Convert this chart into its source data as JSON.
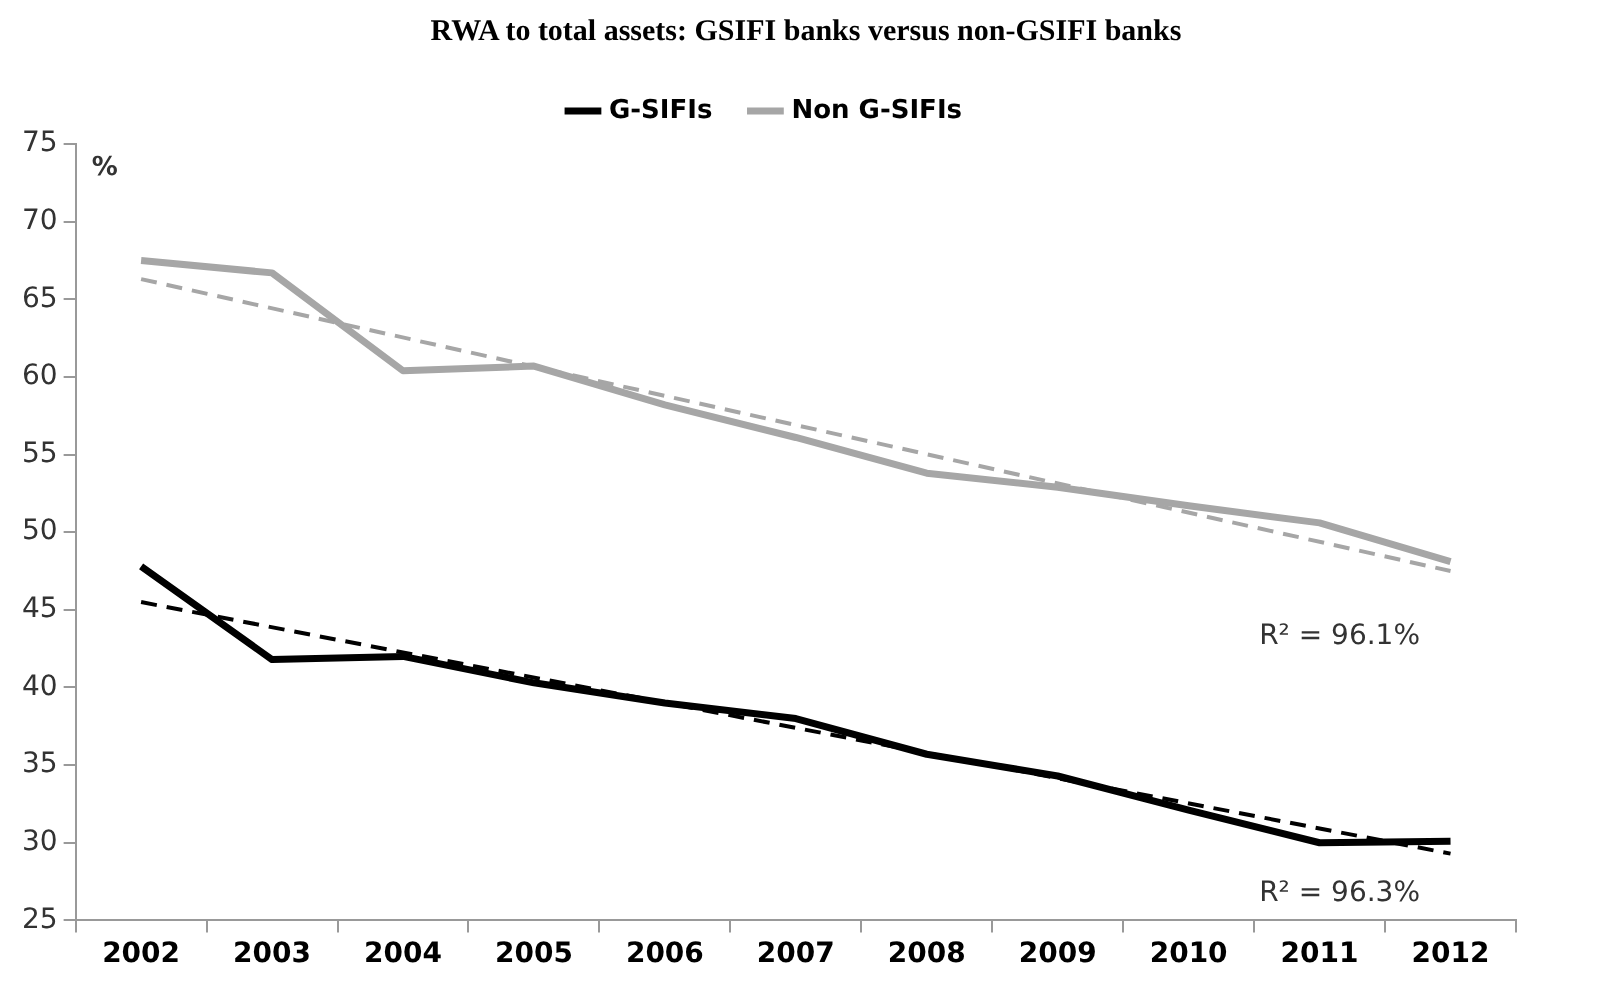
{
  "chart_data": {
    "type": "line",
    "title": "RWA to total assets: GSIFI banks versus non-GSIFI banks",
    "ylabel": "%",
    "categories": [
      "2002",
      "2003",
      "2004",
      "2005",
      "2006",
      "2007",
      "2008",
      "2009",
      "2010",
      "2011",
      "2012"
    ],
    "series": [
      {
        "name": "G-SIFIs",
        "color": "#000000",
        "values": [
          47.8,
          41.8,
          42.0,
          40.3,
          39.0,
          38.0,
          35.7,
          34.3,
          32.1,
          30.0,
          30.1
        ]
      },
      {
        "name": "Non G-SIFIs",
        "color": "#a6a6a6",
        "values": [
          67.5,
          66.7,
          60.4,
          60.7,
          58.2,
          56.1,
          53.8,
          52.9,
          51.7,
          50.6,
          48.1
        ]
      },
      {
        "type": "line",
        "color": "#a6a6a6",
        "line_style": "dashed",
        "values": [
          66.3,
          null,
          null,
          null,
          null,
          null,
          null,
          null,
          null,
          null,
          47.5
        ]
      },
      {
        "type": "line",
        "color": "#000000",
        "line_style": "dashed",
        "values": [
          45.5,
          null,
          null,
          null,
          null,
          null,
          null,
          null,
          null,
          null,
          29.3
        ]
      }
    ],
    "annotations": [
      "R² = 96.1%",
      "R² = 96.3%"
    ],
    "ylim": [
      25,
      75
    ],
    "yticks": [
      25,
      30,
      35,
      40,
      45,
      50,
      55,
      60,
      65,
      70,
      75
    ],
    "grid": false,
    "legend": "top",
    "marker": "none",
    "line_style": "solid"
  }
}
